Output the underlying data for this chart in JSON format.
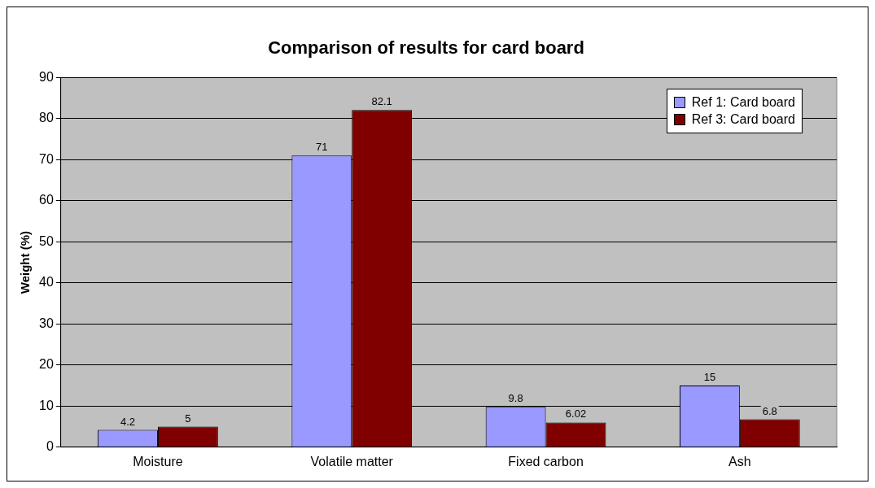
{
  "chart_data": {
    "type": "bar",
    "title": "Comparison of results for card board",
    "ylabel": "Weight (%)",
    "categories": [
      "Moisture",
      "Volatile matter",
      "Fixed carbon",
      "Ash"
    ],
    "series": [
      {
        "name": "Ref 1: Card board",
        "color": "#9999ff",
        "values": [
          4.2,
          71,
          9.8,
          15
        ]
      },
      {
        "name": "Ref 3: Card board",
        "color": "#800000",
        "values": [
          5,
          82.1,
          6.02,
          6.8
        ]
      }
    ],
    "ylim": [
      0,
      90
    ],
    "yticks": [
      0,
      10,
      20,
      30,
      40,
      50,
      60,
      70,
      80,
      90
    ],
    "grid": "y",
    "legend": "top right",
    "data_labels": true
  }
}
